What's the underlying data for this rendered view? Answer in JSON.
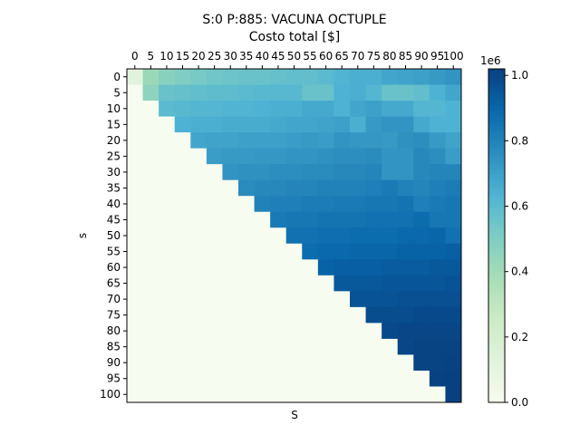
{
  "chart_data": {
    "type": "heatmap",
    "title": "S:0 P:885: VACUNA OCTUPLE",
    "subtitle": "Costo total [$]",
    "xlabel": "S",
    "ylabel": "s",
    "x_ticks": [
      "0",
      "5",
      "10",
      "15",
      "20",
      "25",
      "30",
      "35",
      "40",
      "45",
      "50",
      "55",
      "60",
      "65",
      "70",
      "75",
      "80",
      "85",
      "90",
      "95",
      "100"
    ],
    "y_ticks": [
      "0",
      "5",
      "10",
      "15",
      "20",
      "25",
      "30",
      "35",
      "40",
      "45",
      "50",
      "55",
      "60",
      "65",
      "70",
      "75",
      "80",
      "85",
      "90",
      "95",
      "100"
    ],
    "x_axis_position": "top",
    "colormap": "GnBu",
    "colorbar": {
      "min": 0,
      "max": 1020000,
      "ticks": [
        0,
        0.2,
        0.4,
        0.6,
        0.8,
        1.0
      ],
      "tick_labels": [
        "0.0",
        "0.2",
        "0.4",
        "0.6",
        "0.8",
        "1.0"
      ],
      "multiplier_label": "1e6"
    },
    "masked_value": 0,
    "values": [
      [
        110000,
        420000,
        470000,
        500000,
        520000,
        540000,
        550000,
        560000,
        560000,
        570000,
        580000,
        580000,
        600000,
        630000,
        650000,
        650000,
        680000,
        690000,
        700000,
        720000,
        740000
      ],
      [
        0,
        460000,
        560000,
        570000,
        580000,
        590000,
        590000,
        600000,
        610000,
        610000,
        610000,
        560000,
        560000,
        640000,
        650000,
        620000,
        560000,
        560000,
        580000,
        640000,
        680000
      ],
      [
        0,
        0,
        600000,
        610000,
        620000,
        620000,
        630000,
        630000,
        640000,
        650000,
        650000,
        670000,
        670000,
        640000,
        680000,
        700000,
        670000,
        670000,
        620000,
        620000,
        640000
      ],
      [
        0,
        0,
        0,
        640000,
        650000,
        650000,
        660000,
        660000,
        660000,
        670000,
        680000,
        680000,
        690000,
        700000,
        650000,
        720000,
        740000,
        740000,
        670000,
        640000,
        640000
      ],
      [
        0,
        0,
        0,
        0,
        680000,
        690000,
        690000,
        700000,
        700000,
        700000,
        710000,
        720000,
        710000,
        740000,
        730000,
        730000,
        720000,
        750000,
        760000,
        720000,
        690000
      ],
      [
        0,
        0,
        0,
        0,
        0,
        710000,
        720000,
        720000,
        730000,
        730000,
        740000,
        740000,
        750000,
        760000,
        760000,
        770000,
        740000,
        740000,
        780000,
        760000,
        710000
      ],
      [
        0,
        0,
        0,
        0,
        0,
        0,
        740000,
        750000,
        750000,
        760000,
        760000,
        770000,
        770000,
        780000,
        780000,
        790000,
        740000,
        740000,
        780000,
        790000,
        790000
      ],
      [
        0,
        0,
        0,
        0,
        0,
        0,
        0,
        770000,
        780000,
        780000,
        790000,
        790000,
        800000,
        800000,
        800000,
        810000,
        830000,
        800000,
        790000,
        810000,
        820000
      ],
      [
        0,
        0,
        0,
        0,
        0,
        0,
        0,
        0,
        800000,
        810000,
        810000,
        820000,
        820000,
        830000,
        830000,
        840000,
        840000,
        850000,
        810000,
        830000,
        840000
      ],
      [
        0,
        0,
        0,
        0,
        0,
        0,
        0,
        0,
        0,
        830000,
        840000,
        840000,
        850000,
        850000,
        850000,
        860000,
        860000,
        860000,
        880000,
        840000,
        840000
      ],
      [
        0,
        0,
        0,
        0,
        0,
        0,
        0,
        0,
        0,
        0,
        860000,
        860000,
        870000,
        870000,
        880000,
        880000,
        880000,
        890000,
        890000,
        900000,
        860000
      ],
      [
        0,
        0,
        0,
        0,
        0,
        0,
        0,
        0,
        0,
        0,
        0,
        880000,
        890000,
        890000,
        900000,
        900000,
        900000,
        910000,
        910000,
        910000,
        920000
      ],
      [
        0,
        0,
        0,
        0,
        0,
        0,
        0,
        0,
        0,
        0,
        0,
        0,
        910000,
        920000,
        920000,
        920000,
        930000,
        930000,
        930000,
        940000,
        940000
      ],
      [
        0,
        0,
        0,
        0,
        0,
        0,
        0,
        0,
        0,
        0,
        0,
        0,
        0,
        940000,
        940000,
        940000,
        950000,
        950000,
        950000,
        950000,
        960000
      ],
      [
        0,
        0,
        0,
        0,
        0,
        0,
        0,
        0,
        0,
        0,
        0,
        0,
        0,
        0,
        960000,
        960000,
        960000,
        970000,
        970000,
        970000,
        970000
      ],
      [
        0,
        0,
        0,
        0,
        0,
        0,
        0,
        0,
        0,
        0,
        0,
        0,
        0,
        0,
        0,
        980000,
        980000,
        980000,
        990000,
        990000,
        990000
      ],
      [
        0,
        0,
        0,
        0,
        0,
        0,
        0,
        0,
        0,
        0,
        0,
        0,
        0,
        0,
        0,
        0,
        990000,
        1000000,
        1000000,
        1000000,
        1000000
      ],
      [
        0,
        0,
        0,
        0,
        0,
        0,
        0,
        0,
        0,
        0,
        0,
        0,
        0,
        0,
        0,
        0,
        0,
        1000000,
        1010000,
        1010000,
        1010000
      ],
      [
        0,
        0,
        0,
        0,
        0,
        0,
        0,
        0,
        0,
        0,
        0,
        0,
        0,
        0,
        0,
        0,
        0,
        0,
        1010000,
        1010000,
        1015000
      ],
      [
        0,
        0,
        0,
        0,
        0,
        0,
        0,
        0,
        0,
        0,
        0,
        0,
        0,
        0,
        0,
        0,
        0,
        0,
        0,
        1015000,
        1018000
      ],
      [
        0,
        0,
        0,
        0,
        0,
        0,
        0,
        0,
        0,
        0,
        0,
        0,
        0,
        0,
        0,
        0,
        0,
        0,
        0,
        0,
        1020000
      ]
    ]
  }
}
